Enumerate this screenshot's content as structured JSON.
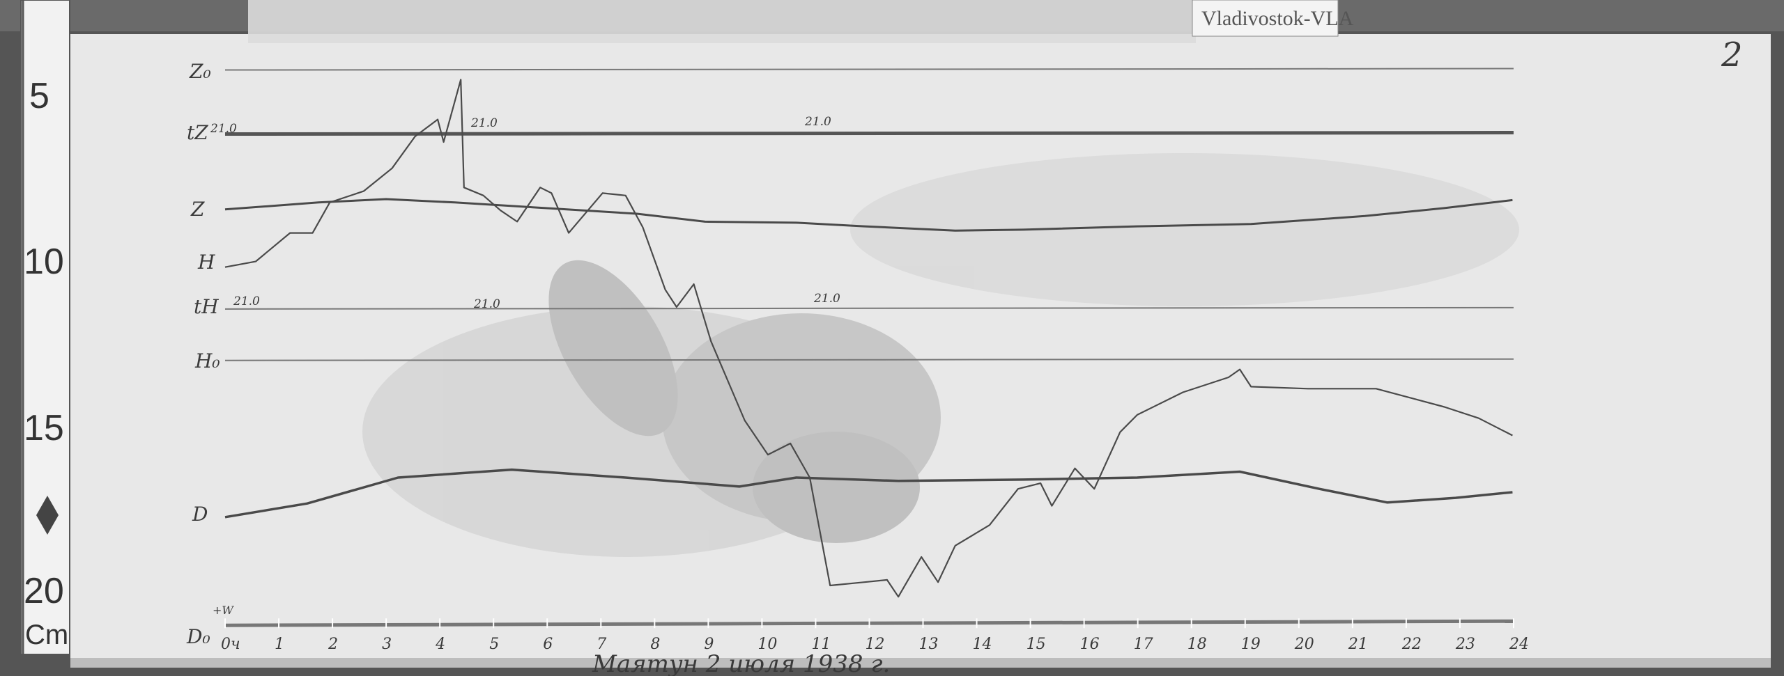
{
  "station_label": "Vladivostok-VLA",
  "sheet_number": "2",
  "caption": "Маятун 2 июля 1938 г.",
  "ruler": {
    "labels": [
      "5",
      "10",
      "15",
      "20"
    ],
    "unit": "Cm"
  },
  "trace_labels": {
    "z0": "Z₀",
    "tz": "tZ",
    "z": "Z",
    "h": "H",
    "th": "tH",
    "h0": "H₀",
    "d": "D",
    "d0": "D₀",
    "plus_w": "+W"
  },
  "temperature_marks": [
    "21.0",
    "21.0",
    "21.0",
    "21.0",
    "21.0",
    "21.0"
  ],
  "colors": {
    "paper": "#e6e6e6",
    "trace": "#4a4a4a",
    "background": "#4a4a4a"
  },
  "chart_data": {
    "type": "line",
    "title": "",
    "xlabel": "",
    "ylabel": "",
    "x_unit": "hours",
    "y_unit": "cm (ruler)",
    "xlim": [
      0,
      24
    ],
    "ylim": [
      4,
      21.5
    ],
    "y_inverted": true,
    "grid": false,
    "x_tick_labels": [
      "0ч",
      "1",
      "2",
      "3",
      "4",
      "5",
      "6",
      "7",
      "8",
      "9",
      "10",
      "11",
      "12",
      "13",
      "14",
      "15",
      "16",
      "17",
      "18",
      "19",
      "20",
      "21",
      "22",
      "23",
      "24"
    ],
    "baselines": [
      {
        "name": "Z₀",
        "y": 4.3
      },
      {
        "name": "tZ",
        "y": 6.23
      },
      {
        "name": "tH",
        "y": 11.5
      },
      {
        "name": "H₀",
        "y": 13.05
      },
      {
        "name": "D₀",
        "y": 21.03
      }
    ],
    "series": [
      {
        "name": "Z",
        "x": [
          0,
          1.74,
          3.0,
          4.28,
          5.97,
          7.67,
          8.94,
          10.64,
          11.91,
          13.6,
          14.87,
          16.99,
          19.11,
          21.23,
          22.71,
          23.98
        ],
        "y": [
          8.5,
          8.29,
          8.19,
          8.29,
          8.46,
          8.63,
          8.87,
          8.9,
          9.01,
          9.14,
          9.11,
          9.01,
          8.94,
          8.7,
          8.46,
          8.22
        ]
      },
      {
        "name": "H",
        "x": [
          0,
          0.57,
          1.21,
          1.63,
          1.95,
          2.58,
          3.11,
          3.54,
          3.96,
          4.07,
          4.39,
          4.45,
          4.81,
          5.13,
          5.44,
          5.87,
          6.08,
          6.4,
          7.03,
          7.46,
          7.78,
          8.2,
          8.41,
          8.73,
          9.05,
          9.68,
          10.11,
          10.53,
          10.89,
          11.27,
          11.91,
          12.33,
          12.54,
          12.97,
          13.28,
          13.6,
          14.24,
          14.77,
          15.19,
          15.4,
          15.83,
          16.19,
          16.67,
          16.99,
          17.84,
          18.69,
          18.9,
          19.11,
          20.17,
          21.44,
          22.71,
          23.35,
          23.98
        ],
        "y": [
          10.24,
          10.07,
          9.21,
          9.21,
          8.29,
          7.95,
          7.26,
          6.3,
          5.79,
          6.47,
          4.59,
          7.84,
          8.08,
          8.53,
          8.87,
          7.84,
          8.01,
          9.21,
          8.01,
          8.08,
          9.04,
          10.92,
          11.44,
          10.75,
          12.47,
          14.86,
          15.89,
          15.55,
          16.58,
          19.83,
          19.73,
          19.66,
          20.17,
          18.97,
          19.73,
          18.63,
          18.01,
          16.92,
          16.75,
          17.43,
          16.3,
          16.92,
          15.21,
          14.69,
          14.01,
          13.56,
          13.32,
          13.84,
          13.9,
          13.9,
          14.45,
          14.79,
          15.31
        ]
      },
      {
        "name": "D",
        "x": [
          0,
          1.53,
          3.22,
          5.34,
          7.46,
          9.58,
          10.64,
          12.54,
          14.87,
          16.99,
          18.9,
          20.38,
          21.65,
          22.92,
          23.98
        ],
        "y": [
          17.77,
          17.36,
          16.58,
          16.34,
          16.58,
          16.85,
          16.58,
          16.68,
          16.64,
          16.58,
          16.4,
          16.92,
          17.33,
          17.19,
          17.02
        ]
      }
    ]
  }
}
